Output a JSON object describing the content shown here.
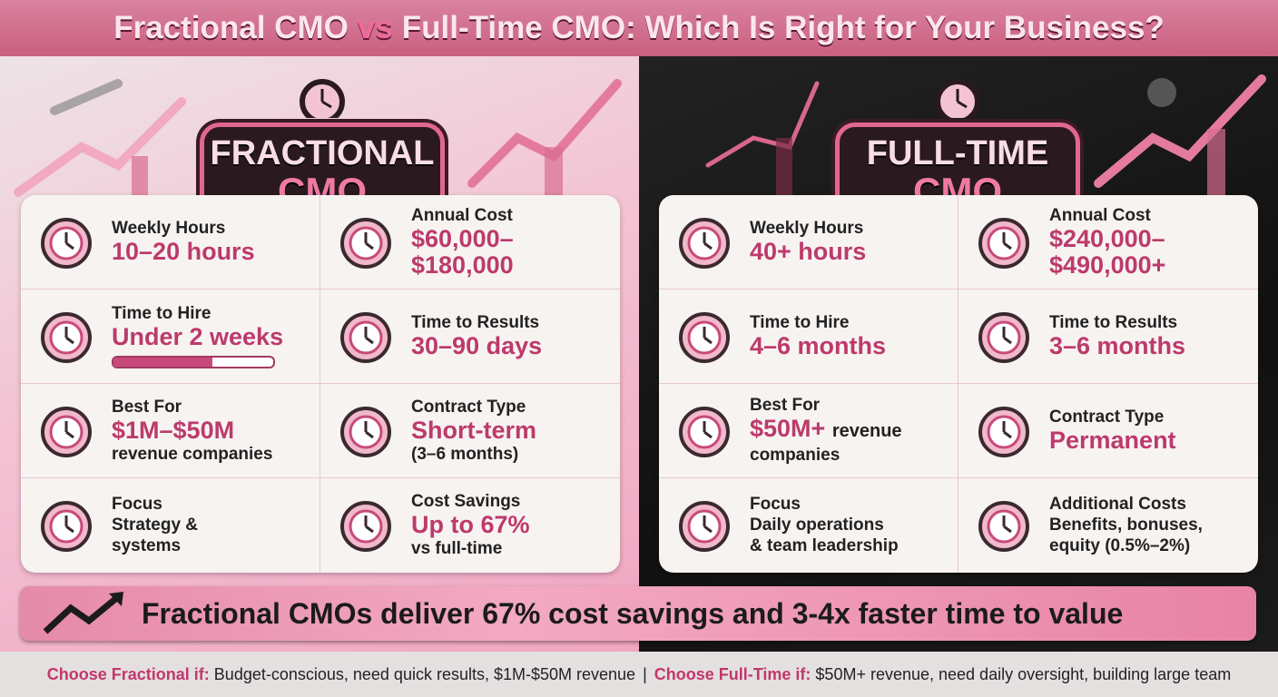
{
  "title": {
    "parts": [
      "Fractional CMO",
      "vs",
      "Full-Time CMO: Which Is Right for Your Business?"
    ]
  },
  "panels": [
    {
      "badge": [
        "FRACTIONAL",
        "CMO"
      ],
      "items": [
        {
          "label": "Weekly Hours",
          "value": [
            "10–20 hours"
          ]
        },
        {
          "label": "Annual Cost",
          "value": [
            "$60,000–",
            "$180,000"
          ]
        },
        {
          "label": "Time to Hire",
          "value": [
            "Under 2 weeks"
          ]
        },
        {
          "label": "Time to Results",
          "value": [
            "30–90 days"
          ]
        },
        {
          "label": "Best For",
          "value": [
            "$1M–$50M"
          ],
          "note": [
            "revenue companies"
          ]
        },
        {
          "label": "Contract Type",
          "value": [
            "Short-term"
          ],
          "note": [
            "(3–6 months)"
          ]
        },
        {
          "label": "Focus",
          "note": [
            "Strategy &",
            "systems"
          ]
        },
        {
          "label": "Cost Savings",
          "value": [
            "Up to 67%"
          ],
          "note": [
            "vs full-time"
          ]
        }
      ]
    },
    {
      "badge": [
        "FULL-TIME",
        "CMO"
      ],
      "items": [
        {
          "label": "Weekly Hours",
          "value": [
            "40+ hours"
          ]
        },
        {
          "label": "Annual Cost",
          "value": [
            "$240,000–",
            "$490,000+"
          ]
        },
        {
          "label": "Time to Hire",
          "value": [
            "4–6 months"
          ]
        },
        {
          "label": "Time to Results",
          "value": [
            "3–6 months"
          ]
        },
        {
          "label": "Best For",
          "value": [
            "$50M+"
          ],
          "inline_note": "revenue",
          "note": [
            "companies"
          ]
        },
        {
          "label": "Contract Type",
          "value": [
            "Permanent"
          ]
        },
        {
          "label": "Focus",
          "note": [
            "Daily operations",
            "& team leadership"
          ]
        },
        {
          "label": "Additional Costs",
          "note": [
            "Benefits, bonuses,",
            "equity (0.5%–2%)"
          ]
        }
      ]
    }
  ],
  "banner": "Fractional CMOs deliver 67% cost savings and 3-4x faster time to value",
  "footer": {
    "left_label": "Choose Fractional if:",
    "left_text": "Budget-conscious, need quick results, $1M-$50M revenue",
    "separator": "|",
    "right_label": "Choose Full-Time if:",
    "right_text": "$50M+ revenue, need daily oversight, building large team"
  }
}
